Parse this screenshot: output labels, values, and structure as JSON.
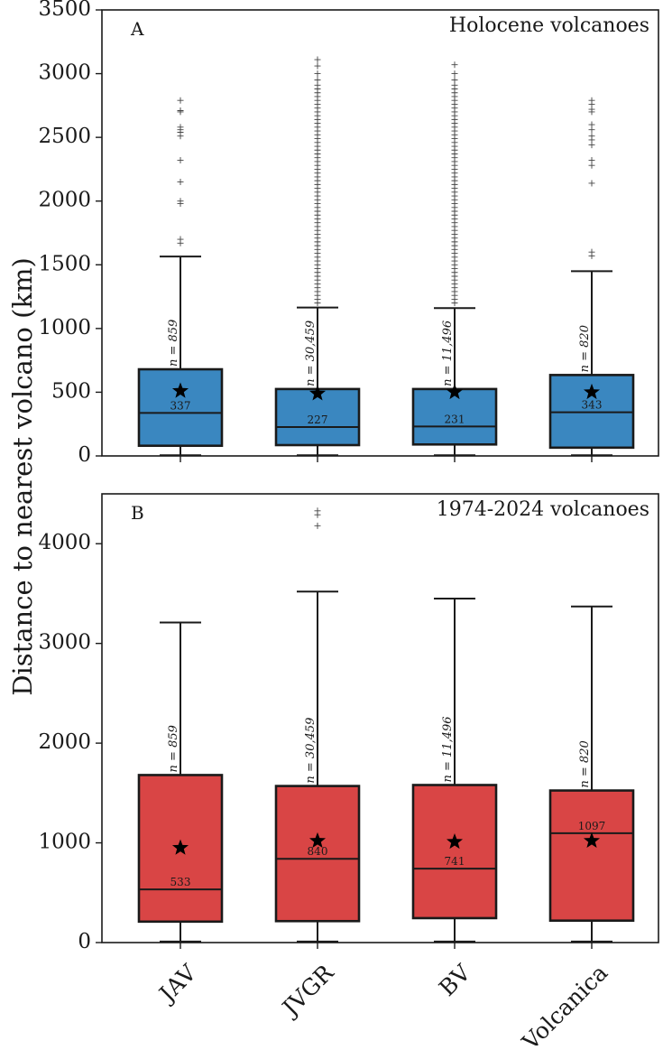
{
  "chart_data": {
    "ylabel": "Distance to nearest volcano (km)",
    "categories": [
      "JAV",
      "JVGR",
      "BV",
      "Volcanica"
    ],
    "panels": [
      {
        "type": "box",
        "letter": "A",
        "title": "Holocene volcanoes",
        "color": "#3a87c0",
        "ylim": [
          0,
          3500
        ],
        "yticks": [
          0,
          500,
          1000,
          1500,
          2000,
          2500,
          3000,
          3500
        ],
        "boxes": [
          {
            "category": "JAV",
            "q1": 80,
            "median": 337,
            "q3": 680,
            "whisker_low": 5,
            "whisker_high": 1565,
            "mean": 510,
            "median_label": "337",
            "n_label": "n = 859",
            "outliers": [
              1670,
              1700,
              1980,
              2000,
              2150,
              2320,
              2510,
              2540,
              2560,
              2580,
              2700,
              2710,
              2790
            ]
          },
          {
            "category": "JVGR",
            "q1": 85,
            "median": 227,
            "q3": 525,
            "whisker_low": 5,
            "whisker_high": 1165,
            "mean": 490,
            "median_label": "227",
            "n_label": "n = 30,459",
            "outliers": [
              1200,
              1230,
              1260,
              1290,
              1320,
              1350,
              1380,
              1410,
              1440,
              1470,
              1500,
              1530,
              1560,
              1590,
              1620,
              1650,
              1680,
              1710,
              1740,
              1770,
              1800,
              1830,
              1860,
              1890,
              1920,
              1950,
              1980,
              2010,
              2040,
              2070,
              2100,
              2130,
              2160,
              2190,
              2220,
              2250,
              2280,
              2310,
              2340,
              2370,
              2400,
              2430,
              2460,
              2490,
              2520,
              2550,
              2580,
              2610,
              2640,
              2670,
              2700,
              2730,
              2760,
              2790,
              2820,
              2850,
              2880,
              2910,
              2950,
              3000,
              3060,
              3110
            ]
          },
          {
            "category": "BV",
            "q1": 90,
            "median": 231,
            "q3": 525,
            "whisker_low": 5,
            "whisker_high": 1160,
            "mean": 500,
            "median_label": "231",
            "n_label": "n = 11,496",
            "outliers": [
              1200,
              1230,
              1260,
              1290,
              1320,
              1350,
              1380,
              1410,
              1440,
              1470,
              1500,
              1530,
              1560,
              1590,
              1620,
              1650,
              1680,
              1710,
              1740,
              1770,
              1800,
              1830,
              1860,
              1890,
              1920,
              1950,
              1980,
              2010,
              2040,
              2070,
              2100,
              2130,
              2160,
              2190,
              2220,
              2250,
              2280,
              2310,
              2340,
              2370,
              2400,
              2430,
              2460,
              2490,
              2520,
              2550,
              2580,
              2610,
              2640,
              2670,
              2700,
              2730,
              2760,
              2790,
              2820,
              2850,
              2880,
              2910,
              2950,
              3000,
              3070
            ]
          },
          {
            "category": "Volcanica",
            "q1": 65,
            "median": 343,
            "q3": 635,
            "whisker_low": 5,
            "whisker_high": 1450,
            "mean": 500,
            "median_label": "343",
            "n_label": "n = 820",
            "outliers": [
              1570,
              1600,
              2140,
              2280,
              2320,
              2440,
              2480,
              2510,
              2560,
              2600,
              2700,
              2720,
              2760,
              2790
            ]
          }
        ]
      },
      {
        "type": "box",
        "letter": "B",
        "title": "1974-2024 volcanoes",
        "color": "#d94545",
        "ylim": [
          0,
          4500
        ],
        "yticks": [
          0,
          1000,
          2000,
          3000,
          4000
        ],
        "boxes": [
          {
            "category": "JAV",
            "q1": 210,
            "median": 533,
            "q3": 1680,
            "whisker_low": 10,
            "whisker_high": 3210,
            "mean": 950,
            "median_label": "533",
            "n_label": "n = 859",
            "outliers": []
          },
          {
            "category": "JVGR",
            "q1": 215,
            "median": 840,
            "q3": 1570,
            "whisker_low": 10,
            "whisker_high": 3520,
            "mean": 1020,
            "median_label": "840",
            "n_label": "n = 30,459",
            "outliers": [
              4180,
              4290,
              4330
            ]
          },
          {
            "category": "BV",
            "q1": 245,
            "median": 741,
            "q3": 1580,
            "whisker_low": 10,
            "whisker_high": 3450,
            "mean": 1010,
            "median_label": "741",
            "n_label": "n = 11,496",
            "outliers": []
          },
          {
            "category": "Volcanica",
            "q1": 220,
            "median": 1097,
            "q3": 1525,
            "whisker_low": 10,
            "whisker_high": 3370,
            "mean": 1020,
            "median_label": "1097",
            "n_label": "n = 820",
            "outliers": []
          }
        ]
      }
    ]
  }
}
